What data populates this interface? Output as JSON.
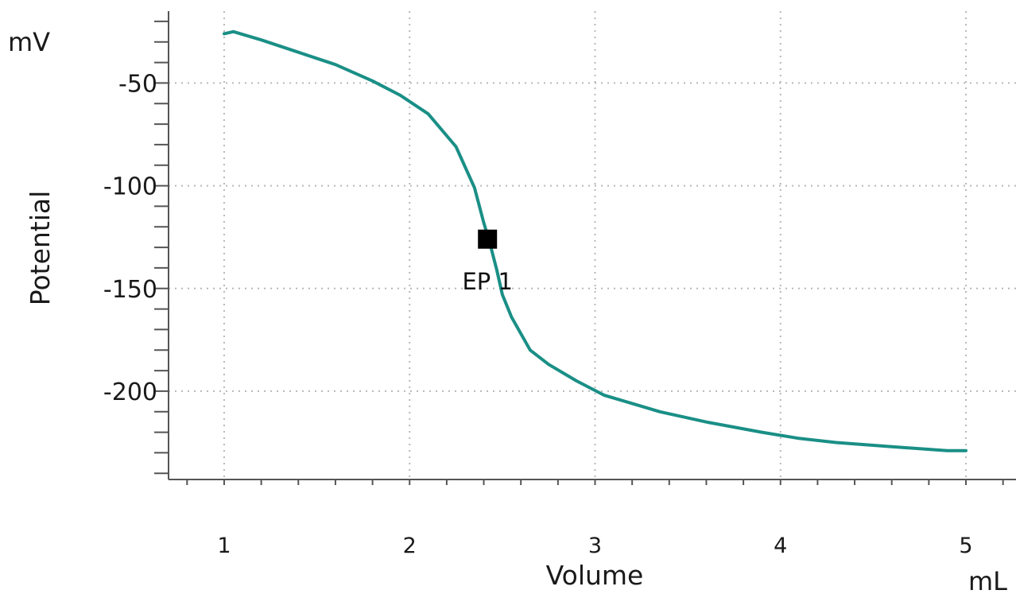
{
  "chart_data": {
    "type": "line",
    "title": "",
    "xlabel": "Volume",
    "ylabel": "Potential",
    "x_unit": "mL",
    "y_unit": "mV",
    "xlim": [
      0.7,
      5.27
    ],
    "ylim": [
      -243,
      -15
    ],
    "x_ticks": [
      1,
      2,
      3,
      4,
      5
    ],
    "x_tick_labels": [
      "1",
      "2",
      "3",
      "4",
      "5"
    ],
    "y_ticks": [
      -50,
      -100,
      -150,
      -200
    ],
    "y_tick_labels": [
      "-50",
      "-100",
      "-150",
      "-200"
    ],
    "grid": true,
    "legend": "none",
    "series": [
      {
        "color": "#1a8f86",
        "x": [
          1.0,
          1.05,
          1.2,
          1.4,
          1.6,
          1.8,
          1.95,
          2.1,
          2.25,
          2.35,
          2.4,
          2.43,
          2.47,
          2.5,
          2.55,
          2.65,
          2.75,
          2.9,
          3.05,
          3.2,
          3.35,
          3.6,
          3.9,
          4.1,
          4.3,
          4.6,
          4.9,
          5.0
        ],
        "y": [
          -26,
          -25,
          -29,
          -35,
          -41,
          -49,
          -56,
          -65,
          -81,
          -101,
          -118,
          -127,
          -141,
          -153,
          -164,
          -180,
          -187,
          -195,
          -202,
          -206,
          -210,
          -215,
          -220,
          -223,
          -225,
          -227,
          -229,
          -229
        ]
      }
    ],
    "annotations": [
      {
        "label": "EP 1",
        "x": 2.42,
        "y": -126,
        "marker": "square",
        "color": "#000000"
      }
    ],
    "colors": {
      "series": "#1a8f86",
      "ylabel": "#1a8f86",
      "axis": "#555555",
      "grid": "#b8b8b8",
      "text": "#1a1a1a",
      "marker": "#000000"
    }
  }
}
